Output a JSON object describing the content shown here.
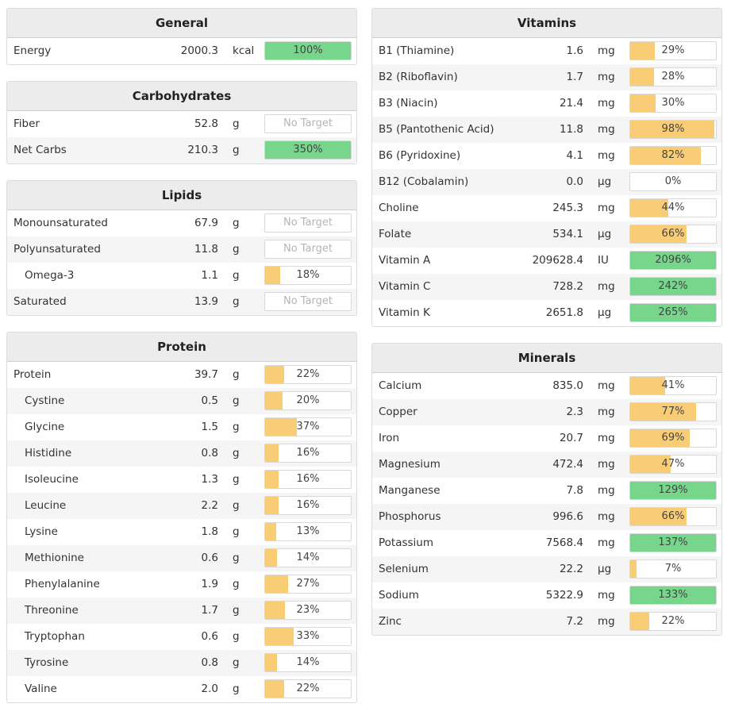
{
  "colors": {
    "low": "#f8cd76",
    "met": "#77d58c"
  },
  "left": [
    {
      "title": "General",
      "rows": [
        {
          "name": "Energy",
          "amount": "2000.3",
          "unit": "kcal",
          "pct": "100%",
          "fill": 100,
          "met": true
        }
      ]
    },
    {
      "title": "Carbohydrates",
      "rows": [
        {
          "name": "Fiber",
          "amount": "52.8",
          "unit": "g",
          "pct": "No Target",
          "fill": 0
        },
        {
          "name": "Net Carbs",
          "amount": "210.3",
          "unit": "g",
          "pct": "350%",
          "fill": 100,
          "met": true
        }
      ]
    },
    {
      "title": "Lipids",
      "rows": [
        {
          "name": "Monounsaturated",
          "amount": "67.9",
          "unit": "g",
          "pct": "No Target",
          "fill": 0
        },
        {
          "name": "Polyunsaturated",
          "amount": "11.8",
          "unit": "g",
          "pct": "No Target",
          "fill": 0
        },
        {
          "name": "Omega-3",
          "amount": "1.1",
          "unit": "g",
          "pct": "18%",
          "fill": 18,
          "sub": true
        },
        {
          "name": "Saturated",
          "amount": "13.9",
          "unit": "g",
          "pct": "No Target",
          "fill": 0
        }
      ]
    },
    {
      "title": "Protein",
      "rows": [
        {
          "name": "Protein",
          "amount": "39.7",
          "unit": "g",
          "pct": "22%",
          "fill": 22
        },
        {
          "name": "Cystine",
          "amount": "0.5",
          "unit": "g",
          "pct": "20%",
          "fill": 20,
          "sub": true
        },
        {
          "name": "Glycine",
          "amount": "1.5",
          "unit": "g",
          "pct": "37%",
          "fill": 37,
          "sub": true
        },
        {
          "name": "Histidine",
          "amount": "0.8",
          "unit": "g",
          "pct": "16%",
          "fill": 16,
          "sub": true
        },
        {
          "name": "Isoleucine",
          "amount": "1.3",
          "unit": "g",
          "pct": "16%",
          "fill": 16,
          "sub": true
        },
        {
          "name": "Leucine",
          "amount": "2.2",
          "unit": "g",
          "pct": "16%",
          "fill": 16,
          "sub": true
        },
        {
          "name": "Lysine",
          "amount": "1.8",
          "unit": "g",
          "pct": "13%",
          "fill": 13,
          "sub": true
        },
        {
          "name": "Methionine",
          "amount": "0.6",
          "unit": "g",
          "pct": "14%",
          "fill": 14,
          "sub": true
        },
        {
          "name": "Phenylalanine",
          "amount": "1.9",
          "unit": "g",
          "pct": "27%",
          "fill": 27,
          "sub": true
        },
        {
          "name": "Threonine",
          "amount": "1.7",
          "unit": "g",
          "pct": "23%",
          "fill": 23,
          "sub": true
        },
        {
          "name": "Tryptophan",
          "amount": "0.6",
          "unit": "g",
          "pct": "33%",
          "fill": 33,
          "sub": true
        },
        {
          "name": "Tyrosine",
          "amount": "0.8",
          "unit": "g",
          "pct": "14%",
          "fill": 14,
          "sub": true
        },
        {
          "name": "Valine",
          "amount": "2.0",
          "unit": "g",
          "pct": "22%",
          "fill": 22,
          "sub": true
        }
      ]
    }
  ],
  "right": [
    {
      "title": "Vitamins",
      "rows": [
        {
          "name": "B1 (Thiamine)",
          "amount": "1.6",
          "unit": "mg",
          "pct": "29%",
          "fill": 29
        },
        {
          "name": "B2 (Riboflavin)",
          "amount": "1.7",
          "unit": "mg",
          "pct": "28%",
          "fill": 28
        },
        {
          "name": "B3 (Niacin)",
          "amount": "21.4",
          "unit": "mg",
          "pct": "30%",
          "fill": 30
        },
        {
          "name": "B5 (Pantothenic Acid)",
          "amount": "11.8",
          "unit": "mg",
          "pct": "98%",
          "fill": 98
        },
        {
          "name": "B6 (Pyridoxine)",
          "amount": "4.1",
          "unit": "mg",
          "pct": "82%",
          "fill": 82
        },
        {
          "name": "B12 (Cobalamin)",
          "amount": "0.0",
          "unit": "µg",
          "pct": "0%",
          "fill": 0
        },
        {
          "name": "Choline",
          "amount": "245.3",
          "unit": "mg",
          "pct": "44%",
          "fill": 44
        },
        {
          "name": "Folate",
          "amount": "534.1",
          "unit": "µg",
          "pct": "66%",
          "fill": 66
        },
        {
          "name": "Vitamin A",
          "amount": "209628.4",
          "unit": "IU",
          "pct": "2096%",
          "fill": 100,
          "met": true
        },
        {
          "name": "Vitamin C",
          "amount": "728.2",
          "unit": "mg",
          "pct": "242%",
          "fill": 100,
          "met": true
        },
        {
          "name": "Vitamin K",
          "amount": "2651.8",
          "unit": "µg",
          "pct": "265%",
          "fill": 100,
          "met": true
        }
      ]
    },
    {
      "title": "Minerals",
      "rows": [
        {
          "name": "Calcium",
          "amount": "835.0",
          "unit": "mg",
          "pct": "41%",
          "fill": 41
        },
        {
          "name": "Copper",
          "amount": "2.3",
          "unit": "mg",
          "pct": "77%",
          "fill": 77
        },
        {
          "name": "Iron",
          "amount": "20.7",
          "unit": "mg",
          "pct": "69%",
          "fill": 69
        },
        {
          "name": "Magnesium",
          "amount": "472.4",
          "unit": "mg",
          "pct": "47%",
          "fill": 47
        },
        {
          "name": "Manganese",
          "amount": "7.8",
          "unit": "mg",
          "pct": "129%",
          "fill": 100,
          "met": true
        },
        {
          "name": "Phosphorus",
          "amount": "996.6",
          "unit": "mg",
          "pct": "66%",
          "fill": 66
        },
        {
          "name": "Potassium",
          "amount": "7568.4",
          "unit": "mg",
          "pct": "137%",
          "fill": 100,
          "met": true
        },
        {
          "name": "Selenium",
          "amount": "22.2",
          "unit": "µg",
          "pct": "7%",
          "fill": 7
        },
        {
          "name": "Sodium",
          "amount": "5322.9",
          "unit": "mg",
          "pct": "133%",
          "fill": 100,
          "met": true
        },
        {
          "name": "Zinc",
          "amount": "7.2",
          "unit": "mg",
          "pct": "22%",
          "fill": 22
        }
      ]
    }
  ]
}
